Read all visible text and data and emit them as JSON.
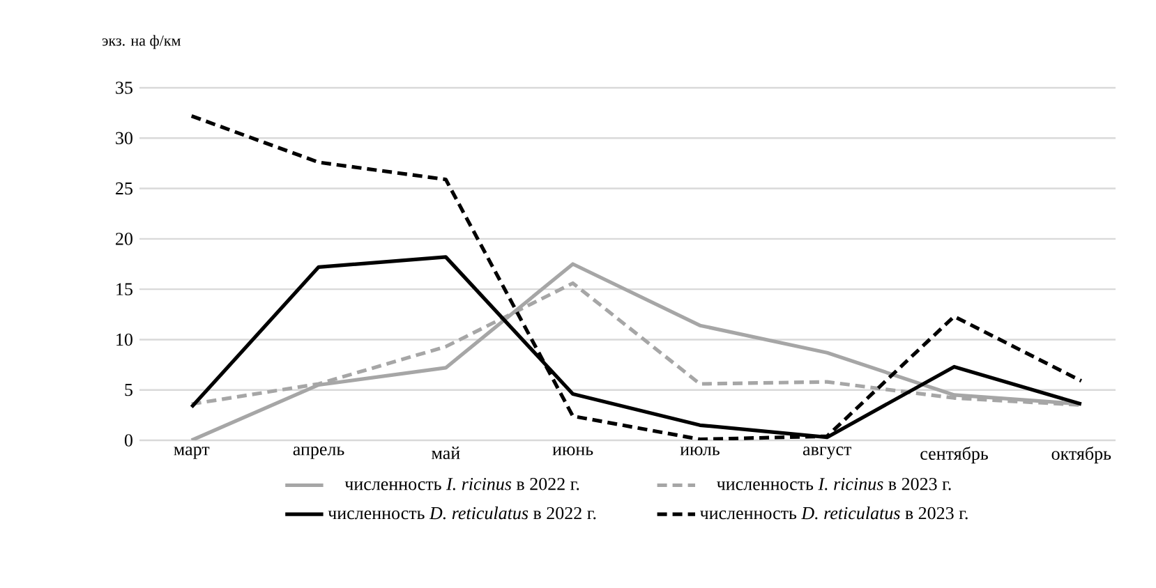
{
  "chart_data": {
    "type": "line",
    "ylabel": "экз. на ф/км",
    "categories": [
      "март",
      "апрель",
      "май",
      "июнь",
      "июль",
      "август",
      "сентябрь",
      "октябрь"
    ],
    "ylim": [
      0,
      35
    ],
    "yticks": [
      0,
      5,
      10,
      15,
      20,
      25,
      30,
      35
    ],
    "grid": "y",
    "legend": "bottom",
    "marker": "none",
    "series": [
      {
        "name": "численность *I. ricinus* в 2022 г.",
        "color": "#a6a6a6",
        "line_style": "solid",
        "values": [
          0,
          5.5,
          7.2,
          17.5,
          11.4,
          8.7,
          4.5,
          3.6
        ]
      },
      {
        "name": "численность *I. ricinus* в 2023 г.",
        "color": "#a6a6a6",
        "line_style": "dashed",
        "values": [
          3.6,
          5.6,
          9.3,
          15.6,
          5.6,
          5.8,
          4.2,
          3.5
        ]
      },
      {
        "name": "численность *D. reticulatus* в 2022 г.",
        "color": "#000000",
        "line_style": "solid",
        "values": [
          3.3,
          17.2,
          18.2,
          4.6,
          1.5,
          0.3,
          7.3,
          3.6
        ]
      },
      {
        "name": "численность *D. reticulatus* в 2023 г.",
        "color": "#000000",
        "line_style": "dashed",
        "values": [
          32.2,
          27.6,
          25.9,
          2.4,
          0.1,
          0.4,
          12.3,
          5.9
        ]
      }
    ]
  }
}
